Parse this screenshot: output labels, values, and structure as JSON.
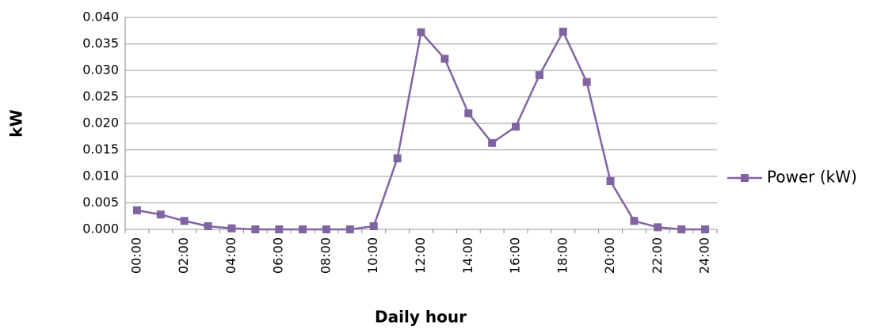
{
  "chart_data": {
    "type": "line",
    "x_label": "Daily hour",
    "y_label": "kW",
    "categories": [
      "00:00",
      null,
      "02:00",
      null,
      "04:00",
      null,
      "06:00",
      null,
      "08:00",
      null,
      "10:00",
      null,
      "12:00",
      null,
      "14:00",
      null,
      "16:00",
      null,
      "18:00",
      null,
      "20:00",
      null,
      "22:00",
      null,
      "24:00"
    ],
    "series": [
      {
        "name": "Power (kW)",
        "color": "#8064a2",
        "values": [
          0.0036,
          0.0028,
          0.0016,
          0.0006,
          0.0002,
          0,
          0,
          0,
          0,
          0,
          0.0006,
          0.0134,
          0.0372,
          0.0322,
          0.0219,
          0.0163,
          0.0194,
          0.0291,
          0.0373,
          0.0278,
          0.0091,
          0.0016,
          0.0004,
          0,
          0
        ]
      }
    ],
    "ylim": [
      0,
      0.04
    ],
    "yticks": [
      {
        "value": 0,
        "label": "0.000"
      },
      {
        "value": 0.005,
        "label": "0.005"
      },
      {
        "value": 0.01,
        "label": "0.010"
      },
      {
        "value": 0.015,
        "label": "0.015"
      },
      {
        "value": 0.02,
        "label": "0.020"
      },
      {
        "value": 0.025,
        "label": "0.025"
      },
      {
        "value": 0.03,
        "label": "0.030"
      },
      {
        "value": 0.035,
        "label": "0.035"
      },
      {
        "value": 0.04,
        "label": "0.040"
      }
    ],
    "grid": true,
    "legend": "right"
  }
}
